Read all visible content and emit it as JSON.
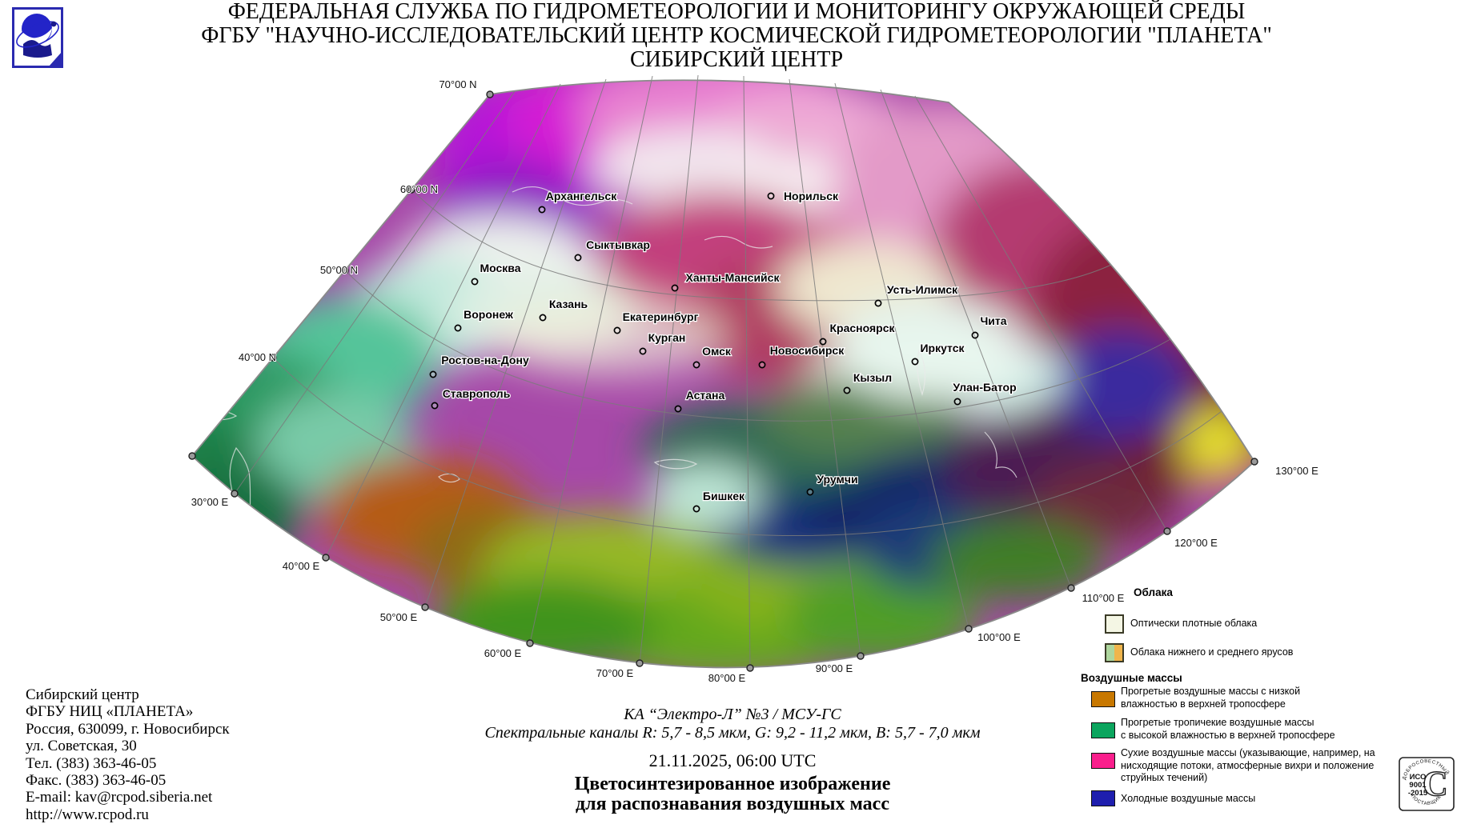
{
  "header": {
    "line1": "ФЕДЕРАЛЬНАЯ СЛУЖБА ПО ГИДРОМЕТЕОРОЛОГИИ И МОНИТОРИНГУ ОКРУЖАЮЩЕЙ СРЕДЫ",
    "line2": "ФГБУ \"НАУЧНО-ИССЛЕДОВАТЕЛЬСКИЙ ЦЕНТР КОСМИЧЕСКОЙ ГИДРОМЕТЕОРОЛОГИИ \"ПЛАНЕТА\"",
    "line3": "СИБИРСКИЙ ЦЕНТР"
  },
  "map": {
    "cities": [
      {
        "name": "Архангельск",
        "label": [
          726,
          250
        ],
        "marker": [
          677,
          262
        ]
      },
      {
        "name": "Норильск",
        "label": [
          1013,
          250
        ],
        "marker": [
          963,
          245
        ]
      },
      {
        "name": "Сыктывкар",
        "label": [
          772,
          311
        ],
        "marker": [
          722,
          322
        ]
      },
      {
        "name": "Москва",
        "label": [
          625,
          340
        ],
        "marker": [
          593,
          352
        ]
      },
      {
        "name": "Ханты-Мансийск",
        "label": [
          915,
          352
        ],
        "marker": [
          843,
          360
        ]
      },
      {
        "name": "Усть-Илимск",
        "label": [
          1152,
          367
        ],
        "marker": [
          1097,
          379
        ]
      },
      {
        "name": "Казань",
        "label": [
          710,
          385
        ],
        "marker": [
          678,
          397
        ]
      },
      {
        "name": "Воронеж",
        "label": [
          610,
          398
        ],
        "marker": [
          572,
          410
        ]
      },
      {
        "name": "Екатеринбург",
        "label": [
          825,
          401
        ],
        "marker": [
          771,
          413
        ]
      },
      {
        "name": "Чита",
        "label": [
          1241,
          406
        ],
        "marker": [
          1218,
          419
        ]
      },
      {
        "name": "Красноярск",
        "label": [
          1077,
          415
        ],
        "marker": [
          1028,
          427
        ]
      },
      {
        "name": "Курган",
        "label": [
          833,
          427
        ],
        "marker": [
          803,
          439
        ]
      },
      {
        "name": "Омск",
        "label": [
          895,
          444
        ],
        "marker": [
          870,
          456
        ]
      },
      {
        "name": "Новосибирск",
        "label": [
          1008,
          443
        ],
        "marker": [
          952,
          456
        ]
      },
      {
        "name": "Иркутск",
        "label": [
          1177,
          440
        ],
        "marker": [
          1143,
          452
        ]
      },
      {
        "name": "Ростов-на-Дону",
        "label": [
          606,
          455
        ],
        "marker": [
          541,
          468
        ]
      },
      {
        "name": "Кызыл",
        "label": [
          1090,
          477
        ],
        "marker": [
          1058,
          488
        ]
      },
      {
        "name": "Улан-Батор",
        "label": [
          1230,
          489
        ],
        "marker": [
          1196,
          502
        ]
      },
      {
        "name": "Ставрополь",
        "label": [
          595,
          497
        ],
        "marker": [
          543,
          507
        ]
      },
      {
        "name": "Астана",
        "label": [
          881,
          499
        ],
        "marker": [
          847,
          511
        ]
      },
      {
        "name": "Урумчи",
        "label": [
          1046,
          604
        ],
        "marker": [
          1012,
          615
        ]
      },
      {
        "name": "Бишкек",
        "label": [
          904,
          625
        ],
        "marker": [
          870,
          636
        ]
      }
    ],
    "lat_labels": [
      {
        "text": "70°00 N",
        "label": [
          572,
          110
        ],
        "anchor": "middle",
        "tick": [
          612,
          118
        ]
      },
      {
        "text": "60°00 N",
        "label": [
          547,
          241
        ],
        "anchor": "end",
        "tick": [
          514,
          237
        ]
      },
      {
        "text": "50°00 N",
        "label": [
          447,
          342
        ],
        "anchor": "end",
        "tick": [
          431,
          338
        ]
      },
      {
        "text": "40°00 N",
        "label": [
          345,
          451
        ],
        "anchor": "end",
        "tick": [
          341,
          447
        ]
      }
    ],
    "lon_labels": [
      {
        "text": "30°00 E",
        "label": [
          262,
          632
        ],
        "tick": [
          293,
          617
        ]
      },
      {
        "text": "40°00 E",
        "label": [
          376,
          712
        ],
        "tick": [
          407,
          697
        ]
      },
      {
        "text": "50°00 E",
        "label": [
          498,
          776
        ],
        "tick": [
          531,
          759
        ]
      },
      {
        "text": "60°00 E",
        "label": [
          628,
          821
        ],
        "tick": [
          662,
          804
        ]
      },
      {
        "text": "70°00 E",
        "label": [
          768,
          846
        ],
        "tick": [
          799,
          829
        ]
      },
      {
        "text": "80°00 E",
        "label": [
          908,
          852
        ],
        "tick": [
          937,
          835
        ]
      },
      {
        "text": "90°00 E",
        "label": [
          1042,
          840
        ],
        "tick": [
          1075,
          820
        ]
      },
      {
        "text": "100°00 E",
        "label": [
          1248,
          801
        ],
        "tick": [
          1210,
          786
        ]
      },
      {
        "text": "110°00 E",
        "label": [
          1378,
          752
        ],
        "tick": [
          1338,
          735
        ]
      },
      {
        "text": "120°00 E",
        "label": [
          1494,
          683
        ],
        "tick": [
          1458,
          664
        ]
      },
      {
        "text": "130°00 E",
        "label": [
          1620,
          593
        ],
        "tick": [
          1567,
          577
        ]
      }
    ],
    "extra_ticks": [
      [
        240,
        570
      ]
    ]
  },
  "legend": {
    "clouds": {
      "title": "Облака",
      "items": [
        {
          "label": "Оптически плотные облака",
          "color": "#f4f6e4"
        },
        {
          "label": "Облака нижнего и среднего ярусов",
          "color_left": "#aed69e",
          "color_right": "#f0b54c"
        }
      ]
    },
    "air": {
      "title": "Воздушные массы",
      "items": [
        {
          "color": "#c87800",
          "line1": "Прогретые воздушные массы с низкой",
          "line2": "влажностью в верхней тропосфере"
        },
        {
          "color": "#0ba55e",
          "line1": "Прогретые тропичекие воздушные массы",
          "line2": "с высокой влажностью в верхней тропосфере"
        },
        {
          "color": "#fa1e8c",
          "line1": "Сухие воздушные массы (указывающие, например, на",
          "line2": "нисходящие потоки, атмосферные вихри и положение",
          "line3": "струйных течений)"
        },
        {
          "color": "#1e1eae",
          "line1": "Холодные воздушные массы"
        }
      ]
    }
  },
  "footer_left": {
    "lines": [
      "Сибирский центр",
      "ФГБУ НИЦ «ПЛАНЕТА»",
      "Россия, 630099, г. Новосибирск",
      "ул. Советская, 30",
      "Тел. (383) 363-46-05",
      "Факс. (383) 363-46-05",
      "E-mail: kav@rcpod.siberia.net",
      "http://www.rcpod.ru"
    ]
  },
  "footer_center": {
    "satellite": "КА  “Электро-Л” №3 / МСУ-ГС",
    "channels": "Спектральные каналы R: 5,7 - 8,5 мкм, G: 9,2 - 11,2 мкм, B: 5,7 - 7,0 мкм",
    "datetime": "21.11.2025, 06:00 UTC",
    "title1": "Цветосинтезированное изображение",
    "title2": "для распознавания воздушных масс"
  },
  "stamp": {
    "arc_top": "ДОБРОСОВЕСТНЫЙ",
    "center1": "ИСО",
    "center2": "9001",
    "center3": "-2015",
    "arc_bottom": "ПОСТАВЩИК",
    "letter": "С"
  }
}
